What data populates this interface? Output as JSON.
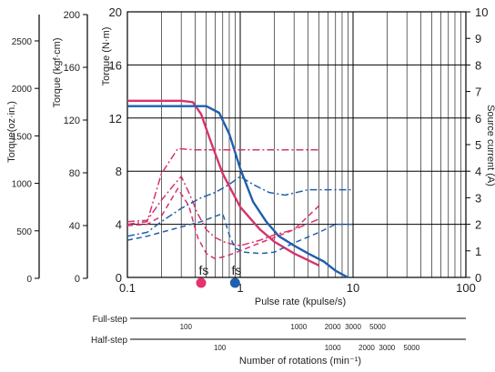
{
  "chart_data": {
    "type": "line",
    "x_scale": "log",
    "xlim": [
      0.1,
      100
    ],
    "x_ticks": [
      0.1,
      1,
      10,
      100
    ],
    "x_tick_labels": [
      "0.1",
      "1",
      "10",
      "100"
    ],
    "xlabel": "Pulse rate (kpulse/s)",
    "ylim": [
      0,
      20
    ],
    "y_ticks": [
      0,
      4,
      8,
      12,
      16,
      20
    ],
    "y_tick_labels": [
      "0",
      "4",
      "8",
      "12",
      "16",
      "20"
    ],
    "ylabel": "Torque (N·m)",
    "y_right_ticks": [
      0,
      1,
      2,
      3,
      4,
      5,
      6,
      7,
      8,
      9,
      10
    ],
    "y_right_tick_labels": [
      "0",
      "1",
      "2",
      "3",
      "4",
      "5",
      "6",
      "7",
      "8",
      "9",
      "10"
    ],
    "y_right_label": "Source current (A)",
    "kgfcm_ticks": [
      0,
      40,
      80,
      120,
      160,
      200
    ],
    "kgfcm_tick_labels": [
      "0",
      "40",
      "80",
      "120",
      "160",
      "200"
    ],
    "kgfcm_label": "Torque (kgf·cm)",
    "ozin_ticks": [
      0,
      500,
      1000,
      1500,
      2000,
      2500
    ],
    "ozin_tick_labels": [
      "0",
      "500",
      "1000",
      "1500",
      "2000",
      "2500"
    ],
    "ozin_label": "Torque(oz·in.)",
    "grid": true,
    "annotations": {
      "fs_label": "fs",
      "fs_pink_x": 0.45,
      "fs_blue_x": 0.9
    },
    "rotation_scales": {
      "full_step_label": "Full-step",
      "full_step_ticks": [
        {
          "label": "100",
          "x": 0.33
        },
        {
          "label": "1000",
          "x": 3.3
        },
        {
          "label": "2000",
          "x": 6.6
        },
        {
          "label": "3000",
          "x": 10
        },
        {
          "label": "5000",
          "x": 16.5
        }
      ],
      "half_step_label": "Half-step",
      "half_step_ticks": [
        {
          "label": "100",
          "x": 0.66
        },
        {
          "label": "1000",
          "x": 6.6
        },
        {
          "label": "2000",
          "x": 13.2
        },
        {
          "label": "3000",
          "x": 20
        },
        {
          "label": "5000",
          "x": 33
        }
      ],
      "rotation_xlabel": "Number of rotations (min⁻¹)"
    },
    "series": [
      {
        "color": "#d6336c",
        "style": "solid",
        "axis": "torque",
        "points": [
          [
            0.1,
            13.3
          ],
          [
            0.2,
            13.3
          ],
          [
            0.3,
            13.3
          ],
          [
            0.38,
            13.2
          ],
          [
            0.45,
            12.3
          ],
          [
            0.55,
            10.2
          ],
          [
            0.7,
            7.8
          ],
          [
            1,
            5.3
          ],
          [
            1.5,
            3.6
          ],
          [
            2,
            2.7
          ],
          [
            3,
            1.8
          ],
          [
            5,
            0.9
          ]
        ]
      },
      {
        "color": "#1f5fad",
        "style": "solid",
        "axis": "torque",
        "points": [
          [
            0.1,
            12.9
          ],
          [
            0.3,
            12.9
          ],
          [
            0.5,
            12.9
          ],
          [
            0.65,
            12.4
          ],
          [
            0.8,
            10.8
          ],
          [
            1,
            8.2
          ],
          [
            1.3,
            5.7
          ],
          [
            1.7,
            4.2
          ],
          [
            2.2,
            3.1
          ],
          [
            3,
            2.4
          ],
          [
            4,
            1.8
          ],
          [
            5.5,
            1.2
          ],
          [
            7,
            0.5
          ],
          [
            9,
            0
          ]
        ]
      },
      {
        "color": "#d6336c",
        "style": "dashdot",
        "axis": "current",
        "points": [
          [
            0.1,
            2.1
          ],
          [
            0.15,
            2.15
          ],
          [
            0.2,
            2.9
          ],
          [
            0.26,
            3.5
          ],
          [
            0.3,
            3.8
          ],
          [
            0.35,
            3.2
          ],
          [
            0.42,
            2.4
          ],
          [
            0.5,
            1.8
          ],
          [
            0.6,
            1.5
          ],
          [
            0.75,
            1.3
          ],
          [
            1,
            1.2
          ],
          [
            1.5,
            1.4
          ],
          [
            2,
            1.6
          ],
          [
            3,
            1.8
          ],
          [
            5,
            2.2
          ]
        ]
      },
      {
        "color": "#d6336c",
        "style": "dashdot",
        "axis": "current",
        "points": [
          [
            0.1,
            2.0
          ],
          [
            0.15,
            2.1
          ],
          [
            0.2,
            3.9
          ],
          [
            0.28,
            4.85
          ],
          [
            0.4,
            4.8
          ],
          [
            1,
            4.8
          ],
          [
            2,
            4.8
          ],
          [
            5,
            4.8
          ]
        ]
      },
      {
        "color": "#d6336c",
        "style": "dashed",
        "axis": "current",
        "points": [
          [
            0.1,
            1.95
          ],
          [
            0.15,
            2.0
          ],
          [
            0.2,
            2.3
          ],
          [
            0.28,
            3.35
          ],
          [
            0.35,
            2.7
          ],
          [
            0.42,
            1.5
          ],
          [
            0.5,
            0.9
          ],
          [
            0.6,
            0.7
          ],
          [
            0.75,
            0.8
          ],
          [
            1,
            1.0
          ],
          [
            1.5,
            1.3
          ],
          [
            2,
            1.5
          ],
          [
            3,
            1.8
          ],
          [
            5,
            2.7
          ]
        ]
      },
      {
        "color": "#1f5fad",
        "style": "dashdot",
        "axis": "current",
        "points": [
          [
            0.1,
            1.55
          ],
          [
            0.15,
            1.7
          ],
          [
            0.2,
            2.1
          ],
          [
            0.3,
            2.6
          ],
          [
            0.45,
            3.0
          ],
          [
            0.6,
            3.2
          ],
          [
            0.8,
            3.5
          ],
          [
            1,
            3.8
          ],
          [
            1.3,
            3.5
          ],
          [
            1.8,
            3.2
          ],
          [
            2.5,
            3.1
          ],
          [
            4,
            3.3
          ],
          [
            7,
            3.3
          ],
          [
            10,
            3.3
          ]
        ]
      },
      {
        "color": "#1f5fad",
        "style": "dashed",
        "axis": "current",
        "points": [
          [
            0.1,
            1.4
          ],
          [
            0.15,
            1.55
          ],
          [
            0.2,
            1.7
          ],
          [
            0.3,
            1.9
          ],
          [
            0.45,
            2.1
          ],
          [
            0.6,
            2.3
          ],
          [
            0.7,
            2.4
          ],
          [
            0.8,
            1.6
          ],
          [
            0.9,
            1.1
          ],
          [
            1.1,
            0.95
          ],
          [
            1.5,
            0.9
          ],
          [
            2,
            0.95
          ],
          [
            3,
            1.3
          ],
          [
            5,
            1.7
          ],
          [
            7,
            2.0
          ],
          [
            10,
            2.0
          ]
        ]
      }
    ]
  }
}
